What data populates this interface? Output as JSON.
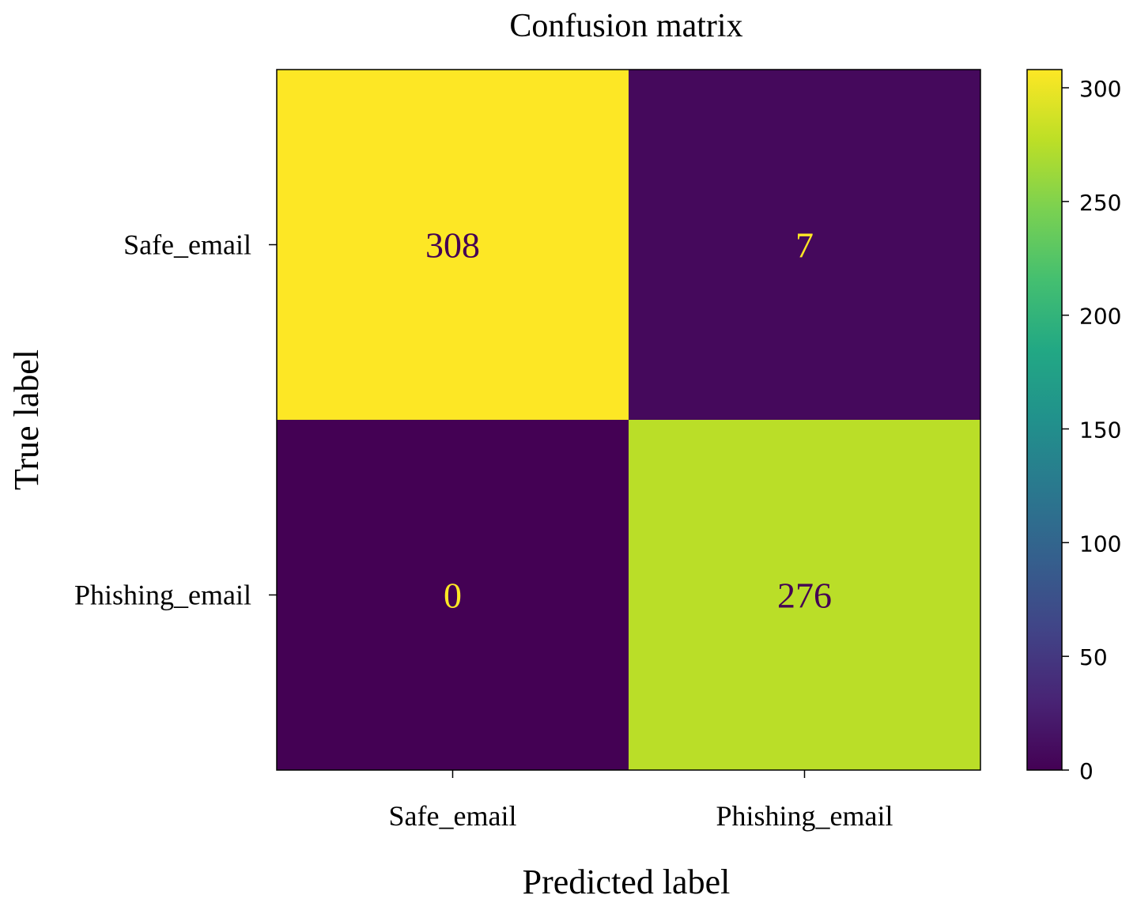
{
  "chart_data": {
    "type": "heatmap",
    "title": "Confusion matrix",
    "xlabel": "Predicted label",
    "ylabel": "True label",
    "x_categories": [
      "Safe_email",
      "Phishing_email"
    ],
    "y_categories": [
      "Safe_email",
      "Phishing_email"
    ],
    "values": [
      [
        308,
        7
      ],
      [
        0,
        276
      ]
    ],
    "colormap": "viridis",
    "colorbar": {
      "min": 0,
      "max": 308,
      "ticks": [
        0,
        50,
        100,
        150,
        200,
        250,
        300
      ],
      "tick_labels": [
        "0",
        "50",
        "100",
        "150",
        "200",
        "250",
        "300"
      ]
    },
    "colors": {
      "low": "#440154",
      "high": "#fde725",
      "text_on_dark": "#fde725",
      "text_on_light": "#440154"
    }
  }
}
